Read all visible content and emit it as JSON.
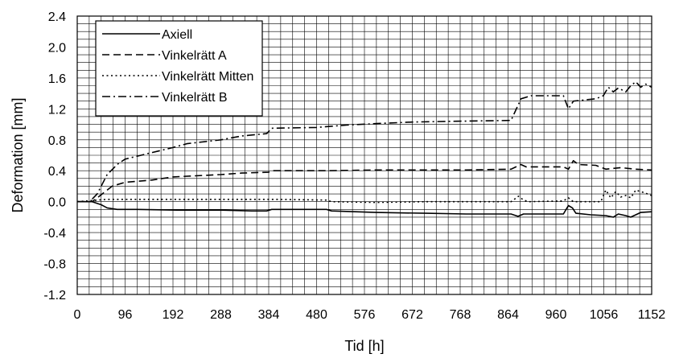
{
  "chart_data": {
    "type": "line",
    "title": "",
    "xlabel": "Tid [h]",
    "ylabel": "Deformation [mm]",
    "xlim": [
      0,
      1152
    ],
    "ylim": [
      -1.2,
      2.4
    ],
    "x_ticks": [
      0,
      96,
      192,
      288,
      384,
      480,
      576,
      672,
      768,
      864,
      960,
      1056,
      1152
    ],
    "x_tick_labels": [
      "0",
      "96",
      "192",
      "288",
      "384",
      "480",
      "576",
      "672",
      "768",
      "864",
      "960",
      "1056",
      "1152"
    ],
    "y_ticks": [
      -1.2,
      -0.8,
      -0.4,
      0.0,
      0.4,
      0.8,
      1.2,
      1.6,
      2.0,
      2.4
    ],
    "y_tick_labels": [
      "-1.2",
      "-0.8",
      "-0.4",
      "0.0",
      "0.4",
      "0.8",
      "1.2",
      "1.6",
      "2.0",
      "2.4"
    ],
    "x_minor_step": 24,
    "y_minor_step": 0.1,
    "grid": true,
    "legend_position": "top-left",
    "series": [
      {
        "name": "Axiell",
        "dash": "solid",
        "points": [
          [
            0,
            0
          ],
          [
            30,
            0
          ],
          [
            48,
            -0.04
          ],
          [
            60,
            -0.08
          ],
          [
            80,
            -0.1
          ],
          [
            120,
            -0.1
          ],
          [
            200,
            -0.11
          ],
          [
            290,
            -0.11
          ],
          [
            350,
            -0.12
          ],
          [
            380,
            -0.12
          ],
          [
            390,
            -0.1
          ],
          [
            500,
            -0.1
          ],
          [
            510,
            -0.12
          ],
          [
            600,
            -0.14
          ],
          [
            700,
            -0.15
          ],
          [
            780,
            -0.16
          ],
          [
            870,
            -0.16
          ],
          [
            884,
            -0.19
          ],
          [
            895,
            -0.16
          ],
          [
            975,
            -0.16
          ],
          [
            985,
            -0.05
          ],
          [
            993,
            -0.08
          ],
          [
            1000,
            -0.15
          ],
          [
            1030,
            -0.17
          ],
          [
            1060,
            -0.18
          ],
          [
            1075,
            -0.2
          ],
          [
            1085,
            -0.16
          ],
          [
            1100,
            -0.18
          ],
          [
            1110,
            -0.2
          ],
          [
            1120,
            -0.17
          ],
          [
            1130,
            -0.14
          ],
          [
            1152,
            -0.13
          ]
        ]
      },
      {
        "name": "Vinkelrätt A",
        "dash": "dashed",
        "points": [
          [
            0,
            0
          ],
          [
            30,
            0
          ],
          [
            50,
            0.1
          ],
          [
            70,
            0.2
          ],
          [
            96,
            0.25
          ],
          [
            150,
            0.28
          ],
          [
            192,
            0.32
          ],
          [
            288,
            0.35
          ],
          [
            330,
            0.37
          ],
          [
            384,
            0.38
          ],
          [
            390,
            0.4
          ],
          [
            500,
            0.4
          ],
          [
            600,
            0.41
          ],
          [
            700,
            0.41
          ],
          [
            780,
            0.41
          ],
          [
            870,
            0.42
          ],
          [
            890,
            0.48
          ],
          [
            900,
            0.45
          ],
          [
            975,
            0.45
          ],
          [
            985,
            0.42
          ],
          [
            995,
            0.53
          ],
          [
            1005,
            0.48
          ],
          [
            1040,
            0.47
          ],
          [
            1060,
            0.42
          ],
          [
            1090,
            0.44
          ],
          [
            1120,
            0.42
          ],
          [
            1152,
            0.41
          ]
        ]
      },
      {
        "name": "Vinkelrätt Mitten",
        "dash": "dotted",
        "points": [
          [
            0,
            0
          ],
          [
            40,
            0.02
          ],
          [
            60,
            0.03
          ],
          [
            200,
            0.03
          ],
          [
            300,
            0.03
          ],
          [
            400,
            0.03
          ],
          [
            500,
            0.02
          ],
          [
            510,
            0
          ],
          [
            600,
            -0.01
          ],
          [
            700,
            0
          ],
          [
            870,
            0
          ],
          [
            885,
            0.07
          ],
          [
            895,
            0.02
          ],
          [
            905,
            0
          ],
          [
            975,
            0.01
          ],
          [
            985,
            0.05
          ],
          [
            995,
            0
          ],
          [
            1050,
            0
          ],
          [
            1060,
            0.15
          ],
          [
            1070,
            0.05
          ],
          [
            1080,
            0.13
          ],
          [
            1090,
            0.06
          ],
          [
            1100,
            0.08
          ],
          [
            1110,
            0.05
          ],
          [
            1120,
            0.15
          ],
          [
            1135,
            0.12
          ],
          [
            1152,
            0.08
          ]
        ]
      },
      {
        "name": "Vinkelrätt B",
        "dash": "dash-dot",
        "points": [
          [
            0,
            0
          ],
          [
            25,
            0
          ],
          [
            40,
            0.1
          ],
          [
            60,
            0.35
          ],
          [
            80,
            0.48
          ],
          [
            96,
            0.55
          ],
          [
            140,
            0.62
          ],
          [
            192,
            0.7
          ],
          [
            220,
            0.75
          ],
          [
            288,
            0.8
          ],
          [
            330,
            0.85
          ],
          [
            380,
            0.88
          ],
          [
            390,
            0.95
          ],
          [
            480,
            0.96
          ],
          [
            540,
            0.99
          ],
          [
            600,
            1.01
          ],
          [
            672,
            1.03
          ],
          [
            760,
            1.04
          ],
          [
            870,
            1.05
          ],
          [
            890,
            1.33
          ],
          [
            910,
            1.37
          ],
          [
            975,
            1.37
          ],
          [
            985,
            1.2
          ],
          [
            995,
            1.3
          ],
          [
            1040,
            1.33
          ],
          [
            1055,
            1.37
          ],
          [
            1065,
            1.48
          ],
          [
            1075,
            1.42
          ],
          [
            1085,
            1.47
          ],
          [
            1100,
            1.42
          ],
          [
            1110,
            1.5
          ],
          [
            1120,
            1.55
          ],
          [
            1130,
            1.48
          ],
          [
            1140,
            1.52
          ],
          [
            1152,
            1.48
          ]
        ]
      }
    ]
  }
}
